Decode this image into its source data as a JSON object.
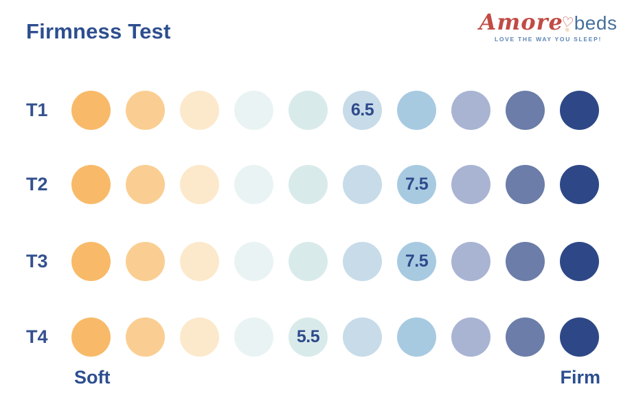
{
  "chart_data": {
    "type": "heatmap",
    "title": "Firmness Test",
    "x_scale": {
      "positions": 10,
      "min_label": "Soft",
      "max_label": "Firm"
    },
    "palette": [
      "#F8BA68",
      "#FACE92",
      "#FCE9CB",
      "#EAF3F3",
      "#D9EAEA",
      "#C7DBE9",
      "#A7CAE1",
      "#A9B4D3",
      "#6B7DA8",
      "#2E4887"
    ],
    "rows": [
      {
        "label": "T1",
        "value": "6.5",
        "labeled_position": 6
      },
      {
        "label": "T2",
        "value": "7.5",
        "labeled_position": 7
      },
      {
        "label": "T3",
        "value": "7.5",
        "labeled_position": 7
      },
      {
        "label": "T4",
        "value": "5.5",
        "labeled_position": 5
      }
    ],
    "value_text_color": "#2E4A8C",
    "legend_position": "none",
    "grid": false
  },
  "logo": {
    "brand_script": "Amore",
    "registered_mark": "®",
    "brand_suffix": "beds",
    "tagline": "LOVE THE WAY YOU SLEEP!",
    "heart_icon": "heart-outline",
    "colors": {
      "script": "#C14B45",
      "suffix": "#46719D",
      "tagline": "#5B84B5",
      "heart": "#C14B45"
    }
  },
  "theme": {
    "title_color": "#2D4E8F",
    "row_label_color": "#34508F",
    "background": "#FFFFFF"
  }
}
